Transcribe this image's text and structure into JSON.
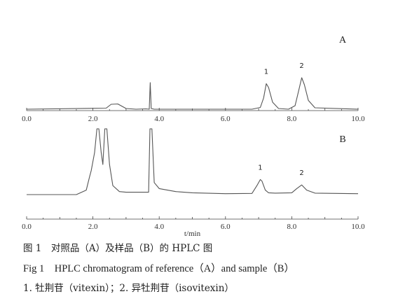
{
  "chart_data": [
    {
      "type": "line",
      "panel": "A",
      "series": [
        {
          "x": [
            0.0,
            2.4,
            2.55,
            2.75,
            3.0,
            3.3,
            3.6,
            3.7,
            3.73,
            3.76,
            3.85,
            6.8,
            7.05,
            7.15,
            7.23,
            7.3,
            7.42,
            7.6,
            7.9,
            8.1,
            8.2,
            8.3,
            8.38,
            8.5,
            8.7,
            10.0
          ],
          "y": [
            0.0,
            0.3,
            1.4,
            1.5,
            0.2,
            0.0,
            0.1,
            0.0,
            7.6,
            0.2,
            0.0,
            0.0,
            0.5,
            3.2,
            7.3,
            6.2,
            2.0,
            0.2,
            0.0,
            1.0,
            5.0,
            9.0,
            7.0,
            2.5,
            0.4,
            0.0
          ]
        }
      ],
      "peak_labels": [
        "1",
        "2"
      ],
      "peak_times": [
        7.23,
        8.3
      ],
      "xlim": [
        0.0,
        10.0
      ],
      "tick_labels": [
        "0.0",
        "2.0",
        "4.0",
        "6.0",
        "8.0",
        "10.0"
      ],
      "grid": false,
      "xlabel": "",
      "ylabel": ""
    },
    {
      "type": "line",
      "panel": "B",
      "series": [
        {
          "x": [
            0.0,
            1.5,
            1.8,
            1.9,
            1.95,
            2.05,
            2.12,
            2.18,
            2.25,
            2.3,
            2.36,
            2.42,
            2.5,
            2.6,
            2.8,
            3.0,
            3.5,
            3.68,
            3.72,
            3.78,
            3.85,
            4.0,
            4.5,
            5.0,
            6.0,
            6.8,
            6.95,
            7.05,
            7.1,
            7.2,
            7.3,
            7.5,
            8.0,
            8.15,
            8.3,
            8.45,
            8.7,
            10.0
          ],
          "y": [
            0.0,
            0.0,
            1.5,
            6.0,
            8.0,
            14.0,
            40.0,
            40.0,
            14.0,
            10.0,
            40.0,
            40.0,
            10.0,
            3.0,
            1.0,
            0.8,
            0.8,
            0.8,
            40.0,
            40.0,
            4.0,
            2.0,
            1.0,
            0.6,
            0.3,
            0.4,
            3.0,
            5.0,
            4.5,
            1.5,
            0.6,
            0.5,
            0.6,
            2.0,
            3.2,
            1.5,
            0.5,
            0.3
          ]
        }
      ],
      "peak_labels": [
        "1",
        "2"
      ],
      "peak_times": [
        7.05,
        8.3
      ],
      "xlim": [
        0.0,
        10.0
      ],
      "tick_labels": [
        "0.0",
        "2.0",
        "4.0",
        "6.0",
        "8.0",
        "10.0"
      ],
      "grid": false,
      "xlabel": "t/min",
      "ylabel": ""
    }
  ],
  "caption": {
    "zh": "图 1　对照品（A）及样品（B）的 HPLC 图",
    "en": "Fig 1　HPLC chromatogram of reference（A）and sample（B）",
    "note": "1. 牡荆苷（vitexin）；2. 异牡荆苷（isovitexin）"
  },
  "colors": {
    "trace": "#555555",
    "axis": "#444444",
    "text": "#222222"
  }
}
